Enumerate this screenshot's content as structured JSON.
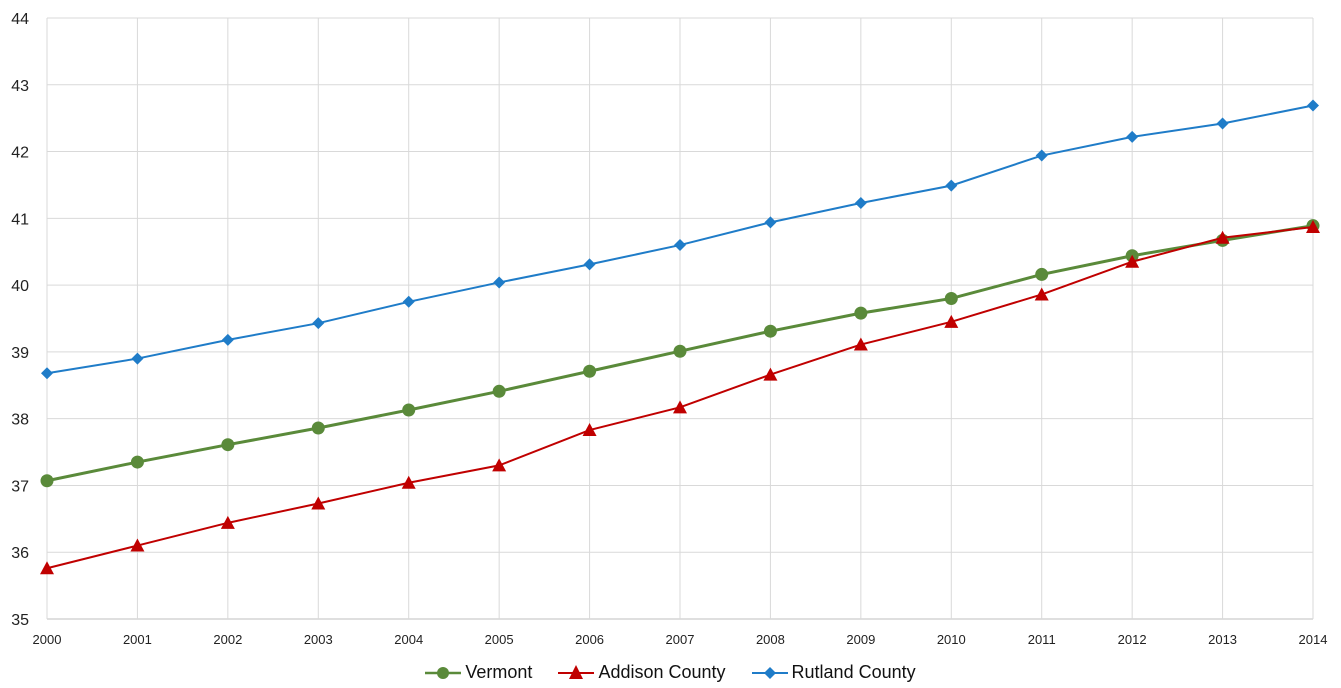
{
  "chart_data": {
    "type": "line",
    "title": "",
    "xlabel": "",
    "ylabel": "",
    "x": [
      "2000",
      "2001",
      "2002",
      "2003",
      "2004",
      "2005",
      "2006",
      "2007",
      "2008",
      "2009",
      "2010",
      "2011",
      "2012",
      "2013",
      "2014"
    ],
    "ylim": [
      35,
      44
    ],
    "yticks": [
      "35",
      "36",
      "37",
      "38",
      "39",
      "40",
      "41",
      "42",
      "43",
      "44"
    ],
    "grid": true,
    "legend_position": "bottom",
    "series": [
      {
        "name": "Vermont",
        "color": "#5a8a3a",
        "marker": "circle",
        "values": [
          37.07,
          37.35,
          37.61,
          37.86,
          38.13,
          38.41,
          38.71,
          39.01,
          39.31,
          39.58,
          39.8,
          40.16,
          40.44,
          40.67,
          40.89
        ]
      },
      {
        "name": "Addison County",
        "color": "#c00000",
        "marker": "triangle",
        "values": [
          35.76,
          36.1,
          36.44,
          36.73,
          37.04,
          37.3,
          37.83,
          38.17,
          38.66,
          39.11,
          39.45,
          39.86,
          40.35,
          40.71,
          40.87
        ]
      },
      {
        "name": "Rutland County",
        "color": "#1f7cc8",
        "marker": "diamond",
        "values": [
          38.68,
          38.9,
          39.18,
          39.43,
          39.75,
          40.04,
          40.31,
          40.6,
          40.94,
          41.23,
          41.49,
          41.94,
          42.22,
          42.42,
          42.69
        ]
      }
    ]
  }
}
